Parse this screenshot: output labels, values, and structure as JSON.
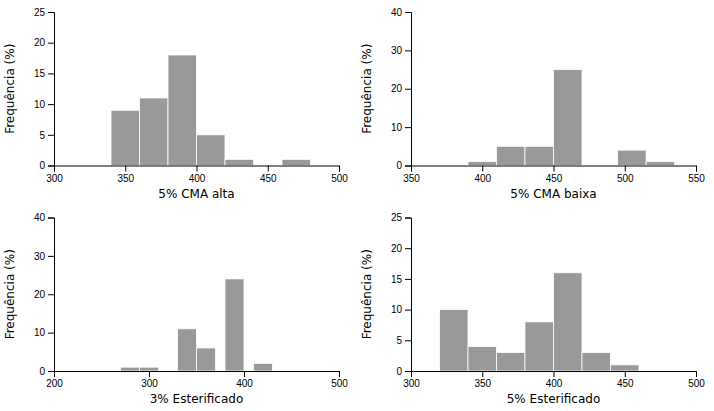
{
  "chart_data": [
    {
      "type": "bar",
      "xlabel": "5% CMA alta",
      "ylabel": "Frequência (%)",
      "x": [
        340,
        360,
        380,
        400,
        420,
        460
      ],
      "values": [
        9,
        11,
        18,
        5,
        1,
        1
      ],
      "bin_width": 20,
      "color": "#999999",
      "xlim": [
        300,
        500
      ],
      "ylim": [
        0,
        25
      ],
      "xticks": [
        300,
        350,
        400,
        450,
        500
      ],
      "yticks": [
        0,
        5,
        10,
        15,
        20,
        25
      ]
    },
    {
      "type": "bar",
      "xlabel": "5% CMA baixa",
      "ylabel": "Frequência (%)",
      "x": [
        390,
        410,
        430,
        450,
        495,
        515
      ],
      "values": [
        1,
        5,
        5,
        25,
        4,
        1
      ],
      "bin_width": 20,
      "color": "#999999",
      "xlim": [
        350,
        550
      ],
      "ylim": [
        0,
        40
      ],
      "xticks": [
        350,
        400,
        450,
        500,
        550
      ],
      "yticks": [
        0,
        10,
        20,
        30,
        40
      ]
    },
    {
      "type": "bar",
      "xlabel": "3% Esterificado",
      "ylabel": "Frequência (%)",
      "x": [
        270,
        290,
        330,
        350,
        380,
        410
      ],
      "values": [
        1,
        1,
        11,
        6,
        24,
        2
      ],
      "bin_width": 20,
      "color": "#999999",
      "xlim": [
        200,
        500
      ],
      "ylim": [
        0,
        40
      ],
      "xticks": [
        200,
        300,
        400,
        500
      ],
      "yticks": [
        0,
        10,
        20,
        30,
        40
      ]
    },
    {
      "type": "bar",
      "xlabel": "5% Esterificado",
      "ylabel": "Frequência (%)",
      "x": [
        320,
        340,
        360,
        380,
        400,
        420,
        440
      ],
      "values": [
        10,
        4,
        3,
        8,
        16,
        3,
        1
      ],
      "bin_width": 20,
      "color": "#999999",
      "xlim": [
        300,
        500
      ],
      "ylim": [
        0,
        25
      ],
      "xticks": [
        300,
        350,
        400,
        450,
        500
      ],
      "yticks": [
        0,
        5,
        10,
        15,
        20,
        25
      ]
    }
  ]
}
